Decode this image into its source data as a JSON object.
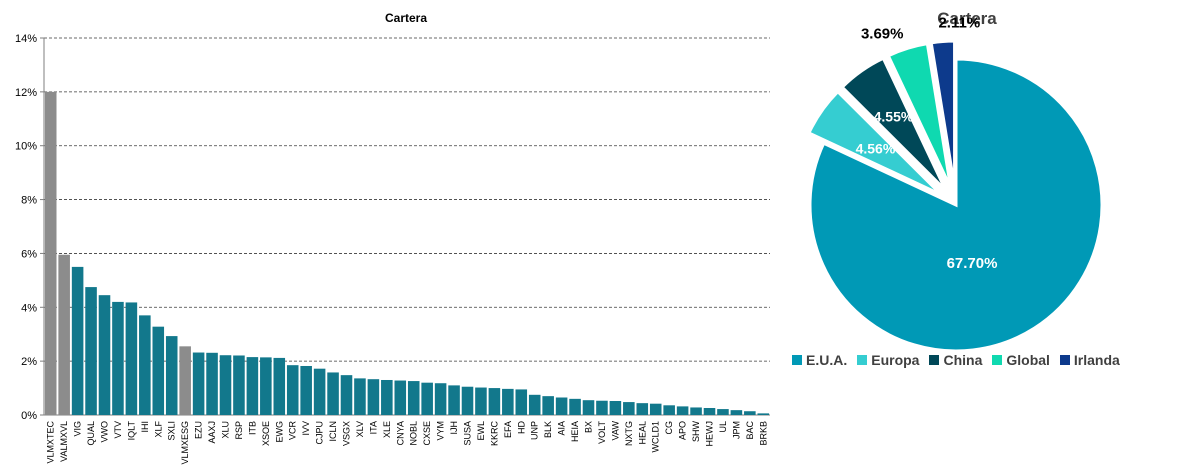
{
  "chart_data": [
    {
      "type": "bar",
      "title": "Cartera",
      "xlabel": "",
      "ylabel": "",
      "ylim": [
        0,
        14
      ],
      "yticks": [
        "0%",
        "2%",
        "4%",
        "6%",
        "8%",
        "10%",
        "12%",
        "14%"
      ],
      "grid": true,
      "categories": [
        "VLMXTEC",
        "VALMXVL",
        "VIG",
        "QUAL",
        "VWO",
        "VTV",
        "IQLT",
        "IHI",
        "XLF",
        "SXLI",
        "VLMXESG",
        "EZU",
        "AAXJ",
        "XLU",
        "RSP",
        "ITB",
        "XSOE",
        "EWG",
        "VCR",
        "IVV",
        "CJPU",
        "ICLN",
        "VSGX",
        "XLV",
        "ITA",
        "XLE",
        "CNYA",
        "NOBL",
        "CXSE",
        "VYM",
        "IJH",
        "SUSA",
        "EWL",
        "KKRC",
        "EFA",
        "HD",
        "UNP",
        "BLK",
        "AIA",
        "HEIA",
        "BX",
        "VOLT",
        "VAW",
        "NXTG",
        "HEAL",
        "WCLD1",
        "CG",
        "APO",
        "SHW",
        "HEWJ",
        "UL",
        "JPM",
        "BAC",
        "BRKB"
      ],
      "values": [
        12.0,
        5.95,
        5.5,
        4.75,
        4.45,
        4.2,
        4.18,
        3.7,
        3.28,
        2.93,
        2.55,
        2.32,
        2.31,
        2.22,
        2.21,
        2.15,
        2.14,
        2.12,
        1.85,
        1.82,
        1.72,
        1.58,
        1.48,
        1.36,
        1.33,
        1.3,
        1.28,
        1.26,
        1.2,
        1.18,
        1.1,
        1.05,
        1.02,
        1.0,
        0.97,
        0.95,
        0.75,
        0.7,
        0.65,
        0.6,
        0.55,
        0.53,
        0.52,
        0.48,
        0.44,
        0.42,
        0.36,
        0.32,
        0.28,
        0.26,
        0.22,
        0.18,
        0.14,
        0.06
      ],
      "highlighted": [
        "VLMXTEC",
        "VALMXVL",
        "VLMXESG"
      ],
      "colors": {
        "default": "#12788c",
        "highlight": "#8c8c8c"
      }
    },
    {
      "type": "pie",
      "title": "Cartera",
      "labels": [
        "E.U.A.",
        "Europa",
        "China",
        "Global",
        "Irlanda"
      ],
      "values": [
        67.7,
        4.56,
        4.55,
        3.69,
        2.11
      ],
      "value_labels": [
        "67.70%",
        "4.56%",
        "4.55%",
        "3.69%",
        "2.11%"
      ],
      "colors": [
        "#0099b6",
        "#35cdd1",
        "#004858",
        "#0fd9b0",
        "#0d3a8c"
      ],
      "legend_position": "bottom"
    }
  ]
}
